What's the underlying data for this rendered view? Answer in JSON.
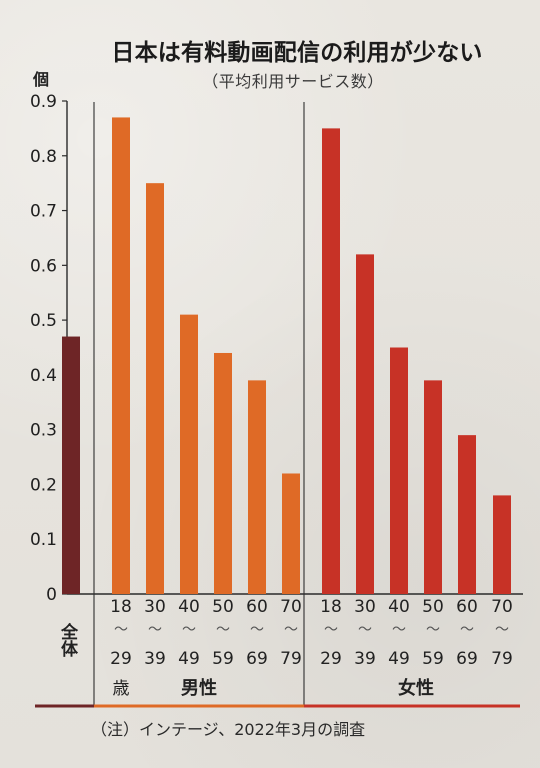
{
  "chart_data": {
    "type": "bar",
    "title": "日本は有料動画配信の利用が少ない",
    "subtitle": "（平均利用サービス数）",
    "ylabel": "個",
    "ylim": [
      0,
      0.9
    ],
    "yticks": [
      "0",
      "0.1",
      "0.2",
      "0.3",
      "0.4",
      "0.5",
      "0.6",
      "0.7",
      "0.8",
      "0.9"
    ],
    "grid": false,
    "groups": [
      {
        "name": "全体",
        "color": "#6e2526",
        "bars": [
          {
            "category": "全体",
            "value": 0.47
          }
        ]
      },
      {
        "name": "男性",
        "color": "#df6a26",
        "bars": [
          {
            "category": "18〜29歳",
            "value": 0.87
          },
          {
            "category": "30〜39",
            "value": 0.75
          },
          {
            "category": "40〜49",
            "value": 0.51
          },
          {
            "category": "50〜59",
            "value": 0.44
          },
          {
            "category": "60〜69",
            "value": 0.39
          },
          {
            "category": "70〜79",
            "value": 0.22
          }
        ]
      },
      {
        "name": "女性",
        "color": "#c73226",
        "bars": [
          {
            "category": "18〜29",
            "value": 0.85
          },
          {
            "category": "30〜39",
            "value": 0.62
          },
          {
            "category": "40〜49",
            "value": 0.45
          },
          {
            "category": "50〜59",
            "value": 0.39
          },
          {
            "category": "60〜69",
            "value": 0.29
          },
          {
            "category": "70〜79",
            "value": 0.18
          }
        ]
      }
    ],
    "x_labels": {
      "overall": "全体",
      "male_ranges": [
        {
          "top": "18",
          "bottom": "29"
        },
        {
          "top": "30",
          "bottom": "39"
        },
        {
          "top": "40",
          "bottom": "49"
        },
        {
          "top": "50",
          "bottom": "59"
        },
        {
          "top": "60",
          "bottom": "69"
        },
        {
          "top": "70",
          "bottom": "79"
        }
      ],
      "female_ranges": [
        {
          "top": "18",
          "bottom": "29"
        },
        {
          "top": "30",
          "bottom": "39"
        },
        {
          "top": "40",
          "bottom": "49"
        },
        {
          "top": "50",
          "bottom": "59"
        },
        {
          "top": "60",
          "bottom": "69"
        },
        {
          "top": "70",
          "bottom": "79"
        }
      ],
      "range_mark": "〜",
      "age_suffix": "歳",
      "male_group": "男性",
      "female_group": "女性"
    },
    "footnote": "（注）インテージ、2022年3月の調査"
  }
}
